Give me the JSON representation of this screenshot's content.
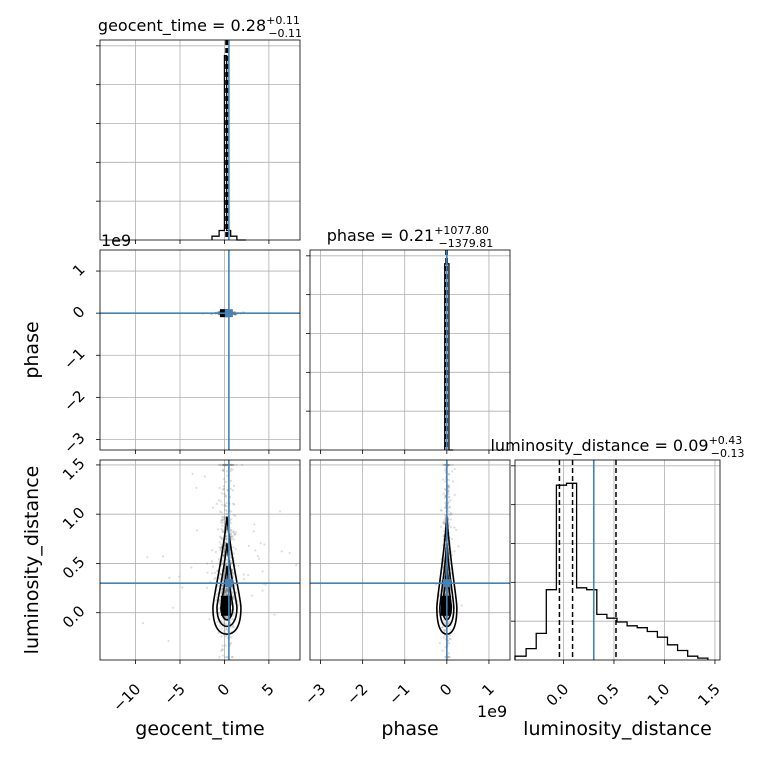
{
  "chart_data": {
    "type": "corner",
    "truth_color": "#4682b4",
    "mark_color": "#000000",
    "grid": true,
    "parameters": [
      {
        "key": "geocent_time",
        "label": "geocent_time",
        "range": [
          -14.0,
          8.5
        ],
        "offset_label": "",
        "ticks": [
          -10,
          -5,
          0,
          5
        ],
        "tick_labels": [
          "−10",
          "−5",
          "0",
          "5"
        ],
        "truth": 0.5,
        "quantiles": [
          0.17,
          0.28,
          0.39
        ],
        "title": {
          "text": "geocent_time = 0.28",
          "upper": "+0.11",
          "lower": "−0.11"
        },
        "hist": {
          "edges": [
            -1.4,
            -0.6,
            0.0,
            0.25,
            0.7,
            1.4,
            2.4
          ],
          "counts": [
            0.02,
            0.05,
            0.97,
            0.05,
            0.02,
            0.0
          ]
        }
      },
      {
        "key": "phase",
        "label": "phase",
        "range": [
          -3.25,
          1.5
        ],
        "offset_label": "1e9",
        "ticks": [
          -3,
          -2,
          -1,
          0,
          1
        ],
        "tick_labels": [
          "−3",
          "−2",
          "−1",
          "0",
          "1"
        ],
        "truth": 0.0,
        "quantiles": [
          -0.02,
          0.0,
          0.01
        ],
        "title": {
          "text": "phase = 0.21",
          "upper": "+1077.80",
          "lower": "−1379.81"
        },
        "hist": {
          "edges": [
            -0.05,
            0.0,
            0.05,
            0.15
          ],
          "counts": [
            0.98,
            0.98,
            0.0
          ]
        }
      },
      {
        "key": "luminosity_distance",
        "label": "luminosity_distance",
        "range": [
          -0.48,
          1.55
        ],
        "offset_label": "",
        "ticks": [
          0.0,
          0.5,
          1.0,
          1.5
        ],
        "tick_labels": [
          "0.0",
          "0.5",
          "1.0",
          "1.5"
        ],
        "truth": 0.3,
        "quantiles": [
          -0.04,
          0.09,
          0.52
        ],
        "title": {
          "text": "luminosity_distance = 0.09",
          "upper": "+0.43",
          "lower": "−0.13"
        },
        "hist": {
          "edges": [
            -0.48,
            -0.37,
            -0.27,
            -0.17,
            -0.07,
            0.03,
            0.13,
            0.23,
            0.33,
            0.43,
            0.53,
            0.63,
            0.73,
            0.83,
            0.93,
            1.03,
            1.13,
            1.23,
            1.33,
            1.43
          ],
          "counts": [
            0.02,
            0.06,
            0.14,
            0.37,
            0.92,
            0.93,
            0.38,
            0.37,
            0.24,
            0.22,
            0.2,
            0.18,
            0.17,
            0.15,
            0.12,
            0.08,
            0.05,
            0.02,
            0.01
          ]
        }
      }
    ],
    "diag_yticks": 5,
    "corner_tick_labels": {
      "phase_row": {
        "ticks": [
          1,
          0,
          -1,
          -2,
          -3
        ],
        "labels": [
          "1",
          "0",
          "−1",
          "−2",
          "−3"
        ]
      },
      "lumdist_row": {
        "ticks": [
          1.5,
          1.0,
          0.5,
          0.0
        ],
        "labels": [
          "1.5",
          "1.0",
          "0.5",
          "0.0"
        ]
      }
    }
  }
}
